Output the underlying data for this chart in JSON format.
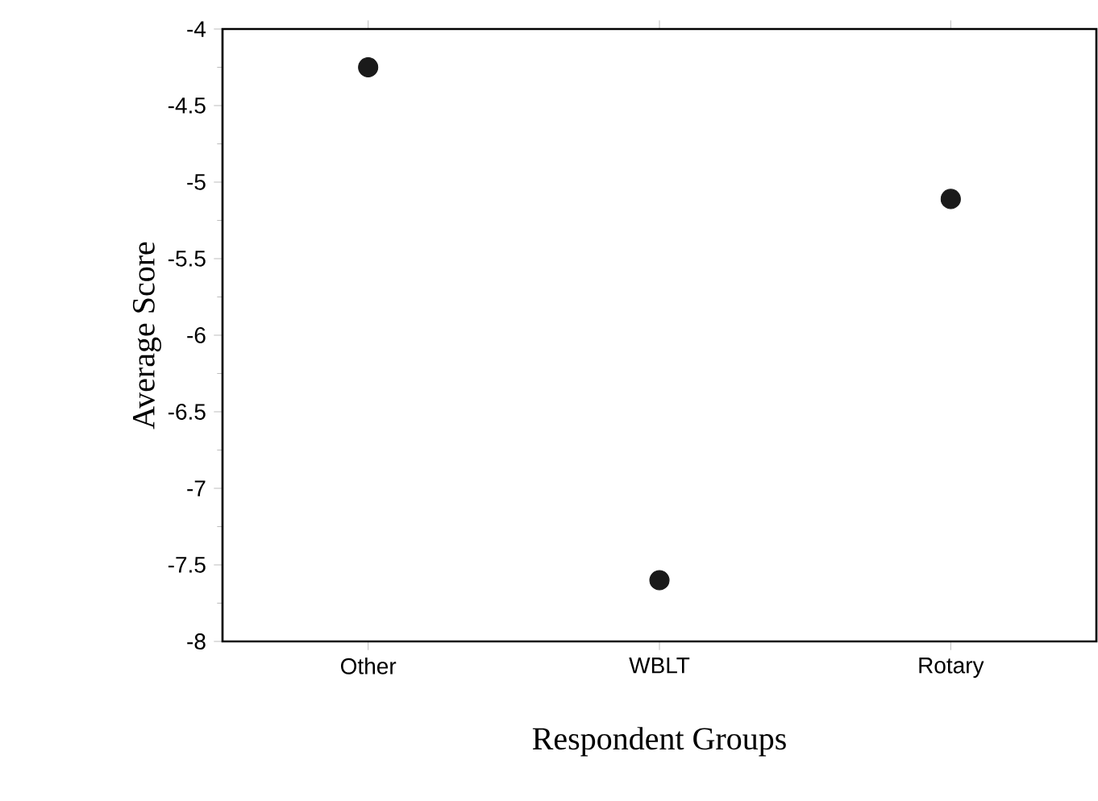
{
  "chart_data": {
    "type": "scatter",
    "xlabel": "Respondent Groups",
    "ylabel": "Average Score",
    "categories": [
      "Other",
      "WBLT",
      "Rotary"
    ],
    "values": [
      -4.25,
      -7.6,
      -5.11
    ],
    "color": "#1a1a1a",
    "ylim": [
      -8,
      -4
    ],
    "yticks": [
      -8,
      -7.5,
      -7,
      -6.5,
      -6,
      -5.5,
      -5,
      -4.5,
      -4
    ],
    "grid": false
  }
}
